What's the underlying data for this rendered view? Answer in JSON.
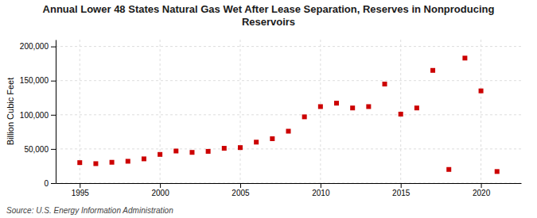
{
  "chart_data": {
    "type": "scatter",
    "title": "Annual Lower 48 States Natural Gas Wet After Lease Separation, Reserves in Nonproducing\nReservoirs",
    "ylabel": "Billion Cubic Feet",
    "source": "Source: U.S. Energy Information Administration",
    "x": [
      1995,
      1996,
      1997,
      1998,
      1999,
      2000,
      2001,
      2002,
      2003,
      2004,
      2005,
      2006,
      2007,
      2008,
      2009,
      2010,
      2011,
      2012,
      2013,
      2014,
      2015,
      2016,
      2017,
      2018,
      2019,
      2020,
      2021
    ],
    "values": [
      30000,
      28500,
      30500,
      32000,
      35500,
      42000,
      47000,
      45000,
      46500,
      51000,
      52000,
      60000,
      65000,
      76000,
      97000,
      112000,
      117000,
      110000,
      112000,
      145000,
      101000,
      110000,
      165000,
      20000,
      183000,
      135000,
      17000
    ],
    "color": "#cc0000",
    "marker": "square",
    "xlim": [
      1993.5,
      2022.5
    ],
    "ylim": [
      0,
      210000
    ],
    "xticks": [
      1995,
      2000,
      2005,
      2010,
      2015,
      2020
    ],
    "yticks": [
      0,
      {
        "value": 50000,
        "label": "50,000"
      },
      {
        "value": 100000,
        "label": "100,000"
      },
      {
        "value": 150000,
        "label": "150,000"
      },
      {
        "value": 200000,
        "label": "200,000"
      }
    ],
    "grid": true
  }
}
